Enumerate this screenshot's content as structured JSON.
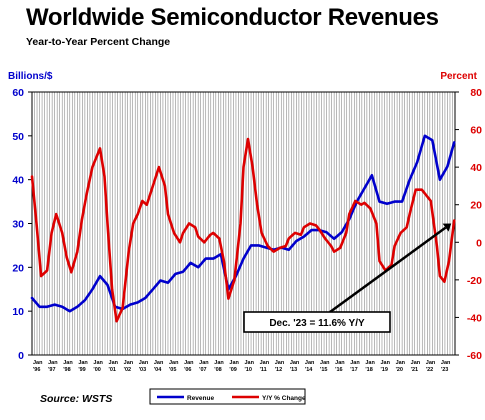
{
  "chart_data": {
    "type": "line",
    "title": "Worldwide Semiconductor Revenues",
    "subtitle": "Year-to-Year Percent Change",
    "y_left": {
      "label": "Billions/$",
      "range": [
        0,
        60
      ],
      "ticks": [
        "0",
        "10",
        "20",
        "30",
        "40",
        "50",
        "60"
      ],
      "color": "#0000cc"
    },
    "y_right": {
      "label": "Percent",
      "range": [
        -60,
        80
      ],
      "ticks": [
        "-60",
        "-40",
        "-20",
        "0",
        "20",
        "40",
        "60",
        "80"
      ],
      "color": "#dd0000"
    },
    "x_ticks": {
      "month": "Jan",
      "years": [
        "'96",
        "'97",
        "'98",
        "'99",
        "'00",
        "'01",
        "'02",
        "'03",
        "'04",
        "'05",
        "'06",
        "'07",
        "'08",
        "'09",
        "'10",
        "'11",
        "'12",
        "'13",
        "'14",
        "'15",
        "'16",
        "'17",
        "'18",
        "'19",
        "'20",
        "'21",
        "'22",
        "'23"
      ]
    },
    "x_range": [
      1996.0,
      2024.0
    ],
    "grid": "vertical",
    "legend": {
      "placement": "bottom-center",
      "entries": [
        "Revenue",
        "Y/Y % Change"
      ]
    },
    "source": "Source: WSTS",
    "annotation": {
      "text": "Dec. '23 = 11.6% Y/Y",
      "points_to": {
        "x": 2023.95,
        "y_right": 11.6
      }
    },
    "series": [
      {
        "name": "Revenue",
        "axis": "left",
        "color": "#0000cc",
        "points": [
          [
            1996.0,
            13
          ],
          [
            1996.5,
            11
          ],
          [
            1997.0,
            11
          ],
          [
            1997.5,
            11.5
          ],
          [
            1998.0,
            11
          ],
          [
            1998.5,
            10
          ],
          [
            1999.0,
            11
          ],
          [
            1999.5,
            12.5
          ],
          [
            2000.0,
            15
          ],
          [
            2000.5,
            18
          ],
          [
            2001.0,
            16
          ],
          [
            2001.5,
            11
          ],
          [
            2002.0,
            10.5
          ],
          [
            2002.5,
            11.5
          ],
          [
            2003.0,
            12
          ],
          [
            2003.5,
            13
          ],
          [
            2004.0,
            15
          ],
          [
            2004.5,
            17
          ],
          [
            2005.0,
            16.5
          ],
          [
            2005.5,
            18.5
          ],
          [
            2006.0,
            19
          ],
          [
            2006.5,
            21
          ],
          [
            2007.0,
            20
          ],
          [
            2007.5,
            22
          ],
          [
            2008.0,
            22
          ],
          [
            2008.5,
            23
          ],
          [
            2009.0,
            15
          ],
          [
            2009.5,
            18
          ],
          [
            2010.0,
            22
          ],
          [
            2010.5,
            25
          ],
          [
            2011.0,
            25
          ],
          [
            2011.5,
            24.5
          ],
          [
            2012.0,
            24
          ],
          [
            2012.5,
            24.5
          ],
          [
            2013.0,
            24
          ],
          [
            2013.5,
            26
          ],
          [
            2014.0,
            27
          ],
          [
            2014.5,
            28.5
          ],
          [
            2015.0,
            28.5
          ],
          [
            2015.5,
            28
          ],
          [
            2016.0,
            26.5
          ],
          [
            2016.5,
            28
          ],
          [
            2017.0,
            31
          ],
          [
            2017.5,
            35
          ],
          [
            2018.0,
            38
          ],
          [
            2018.5,
            41
          ],
          [
            2019.0,
            35
          ],
          [
            2019.5,
            34.5
          ],
          [
            2020.0,
            35
          ],
          [
            2020.5,
            35
          ],
          [
            2021.0,
            40
          ],
          [
            2021.5,
            44
          ],
          [
            2022.0,
            50
          ],
          [
            2022.5,
            49
          ],
          [
            2023.0,
            40
          ],
          [
            2023.5,
            43
          ],
          [
            2023.95,
            48.5
          ]
        ]
      },
      {
        "name": "Y/Y % Change",
        "axis": "right",
        "color": "#dd0000",
        "points": [
          [
            1996.0,
            35
          ],
          [
            1996.3,
            10
          ],
          [
            1996.6,
            -18
          ],
          [
            1997.0,
            -15
          ],
          [
            1997.3,
            5
          ],
          [
            1997.6,
            15
          ],
          [
            1998.0,
            5
          ],
          [
            1998.3,
            -8
          ],
          [
            1998.6,
            -16
          ],
          [
            1999.0,
            -5
          ],
          [
            1999.3,
            12
          ],
          [
            1999.6,
            25
          ],
          [
            2000.0,
            40
          ],
          [
            2000.5,
            50
          ],
          [
            2000.8,
            35
          ],
          [
            2001.0,
            10
          ],
          [
            2001.3,
            -25
          ],
          [
            2001.6,
            -42
          ],
          [
            2002.0,
            -35
          ],
          [
            2002.4,
            -5
          ],
          [
            2002.7,
            10
          ],
          [
            2003.0,
            15
          ],
          [
            2003.3,
            22
          ],
          [
            2003.6,
            20
          ],
          [
            2004.0,
            30
          ],
          [
            2004.4,
            40
          ],
          [
            2004.8,
            30
          ],
          [
            2005.0,
            15
          ],
          [
            2005.4,
            5
          ],
          [
            2005.8,
            0
          ],
          [
            2006.0,
            5
          ],
          [
            2006.4,
            10
          ],
          [
            2006.8,
            8
          ],
          [
            2007.0,
            3
          ],
          [
            2007.4,
            0
          ],
          [
            2007.8,
            4
          ],
          [
            2008.0,
            5
          ],
          [
            2008.4,
            2
          ],
          [
            2008.7,
            -10
          ],
          [
            2009.0,
            -30
          ],
          [
            2009.4,
            -20
          ],
          [
            2009.8,
            10
          ],
          [
            2010.0,
            40
          ],
          [
            2010.3,
            55
          ],
          [
            2010.6,
            40
          ],
          [
            2010.9,
            20
          ],
          [
            2011.2,
            5
          ],
          [
            2011.6,
            -2
          ],
          [
            2012.0,
            -5
          ],
          [
            2012.4,
            -3
          ],
          [
            2012.8,
            -2
          ],
          [
            2013.0,
            2
          ],
          [
            2013.4,
            5
          ],
          [
            2013.8,
            4
          ],
          [
            2014.0,
            8
          ],
          [
            2014.4,
            10
          ],
          [
            2014.8,
            9
          ],
          [
            2015.0,
            7
          ],
          [
            2015.4,
            2
          ],
          [
            2015.8,
            -2
          ],
          [
            2016.0,
            -5
          ],
          [
            2016.4,
            -3
          ],
          [
            2016.8,
            5
          ],
          [
            2017.0,
            15
          ],
          [
            2017.4,
            22
          ],
          [
            2017.8,
            20
          ],
          [
            2018.0,
            21
          ],
          [
            2018.4,
            18
          ],
          [
            2018.8,
            10
          ],
          [
            2019.0,
            -10
          ],
          [
            2019.4,
            -15
          ],
          [
            2019.8,
            -12
          ],
          [
            2020.0,
            -2
          ],
          [
            2020.4,
            5
          ],
          [
            2020.8,
            8
          ],
          [
            2021.0,
            15
          ],
          [
            2021.4,
            28
          ],
          [
            2021.8,
            28
          ],
          [
            2022.0,
            26
          ],
          [
            2022.4,
            22
          ],
          [
            2022.8,
            -2
          ],
          [
            2023.0,
            -18
          ],
          [
            2023.3,
            -21
          ],
          [
            2023.6,
            -10
          ],
          [
            2023.95,
            11.6
          ]
        ]
      }
    ]
  }
}
